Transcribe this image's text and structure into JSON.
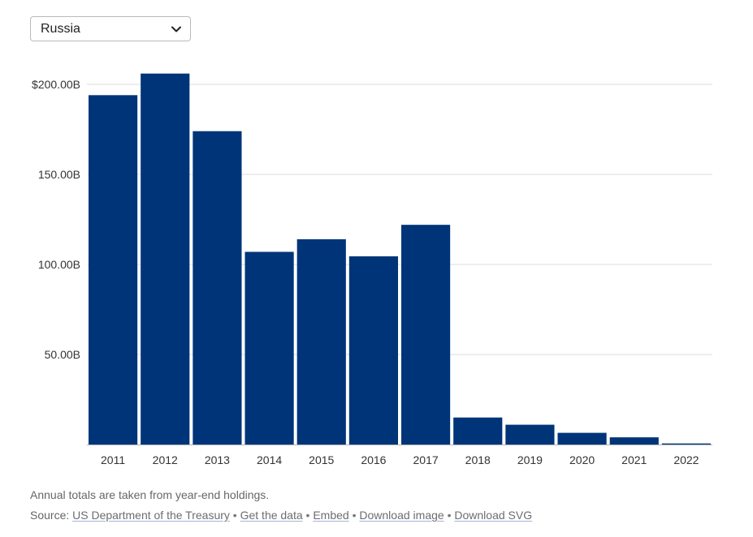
{
  "selector": {
    "selected": "Russia"
  },
  "chart_data": {
    "type": "bar",
    "categories": [
      "2011",
      "2012",
      "2013",
      "2014",
      "2015",
      "2016",
      "2017",
      "2018",
      "2019",
      "2020",
      "2021",
      "2022"
    ],
    "values": [
      194,
      206,
      174,
      107,
      114,
      104.5,
      122,
      15,
      11,
      6.5,
      4,
      0.6
    ],
    "y_unit": "billion USD",
    "yticks": [
      "$200.00B",
      "150.00B",
      "100.00B",
      "50.00B"
    ],
    "ytick_values": [
      200,
      150,
      100,
      50
    ],
    "ylim": [
      0,
      212
    ],
    "grid": true,
    "bar_color": "#003478",
    "title": "",
    "xlabel": "",
    "ylabel": ""
  },
  "footer": {
    "note": "Annual totals are taken from year-end holdings.",
    "source_prefix": "Source: ",
    "source_link": "US Department of the Treasury",
    "links": [
      "Get the data",
      "Embed",
      "Download image",
      "Download SVG"
    ],
    "separator": " • "
  }
}
